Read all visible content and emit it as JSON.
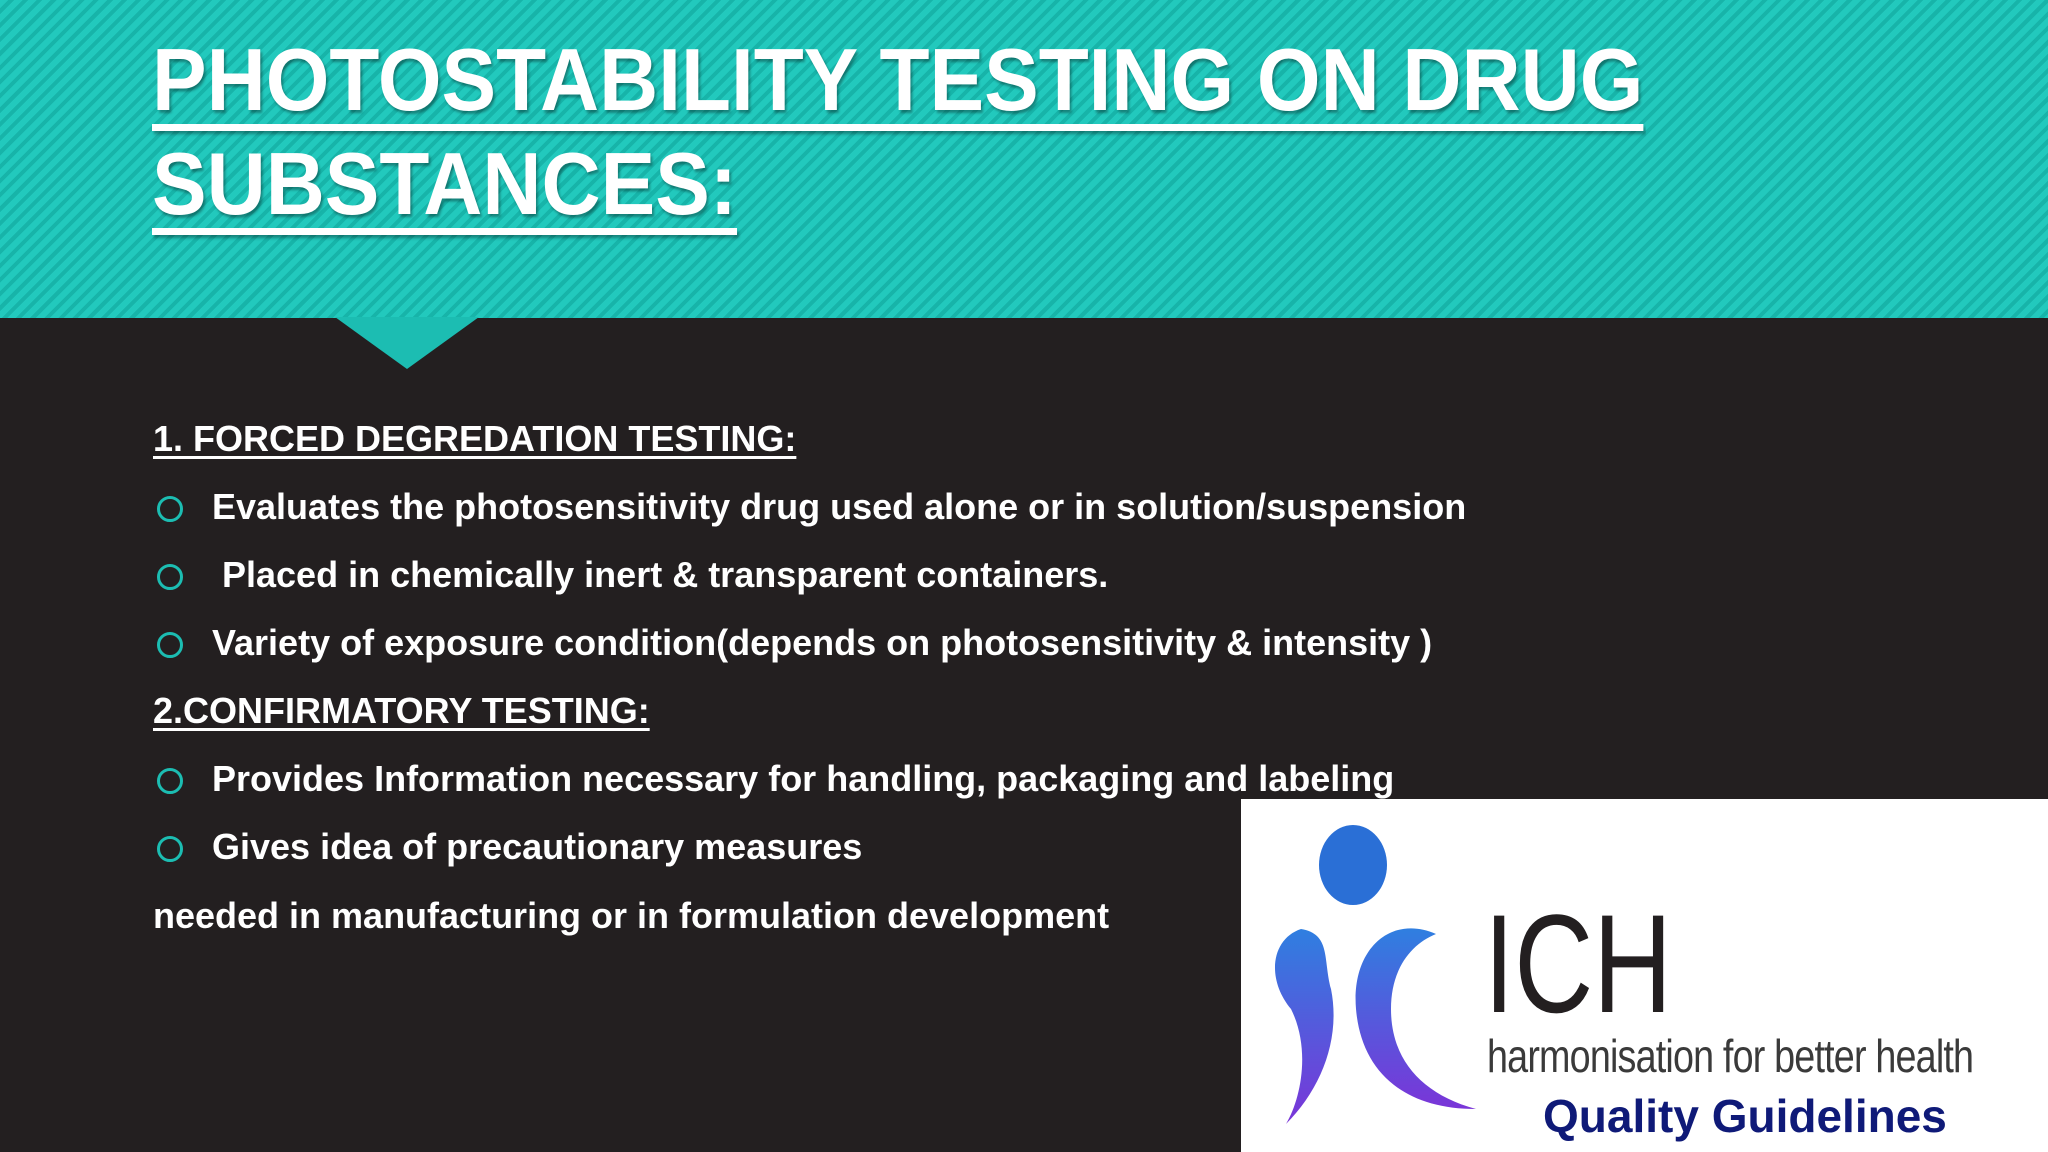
{
  "slide": {
    "title": "PHOTOSTABILITY TESTING ON DRUG SUBSTANCES:",
    "sections": [
      {
        "heading": "1. FORCED DEGREDATION TESTING:",
        "bullets": [
          "Evaluates the photosensitivity drug used alone or in solution/suspension",
          " Placed in chemically inert & transparent containers.",
          "Variety of exposure condition(depends on photosensitivity & intensity )"
        ]
      },
      {
        "heading": "2.CONFIRMATORY TESTING:",
        "bullets": [
          "Provides Information necessary for handling, packaging and labeling",
          "Gives idea of precautionary measures"
        ],
        "continuation": "needed in manufacturing or in formulation development"
      }
    ],
    "logo": {
      "name": "ICH",
      "tagline": "harmonisation for better health",
      "caption": "Quality Guidelines"
    }
  },
  "colors": {
    "accent": "#1fc4b8",
    "background": "#231f20",
    "logo_caption": "#0f1a78"
  }
}
